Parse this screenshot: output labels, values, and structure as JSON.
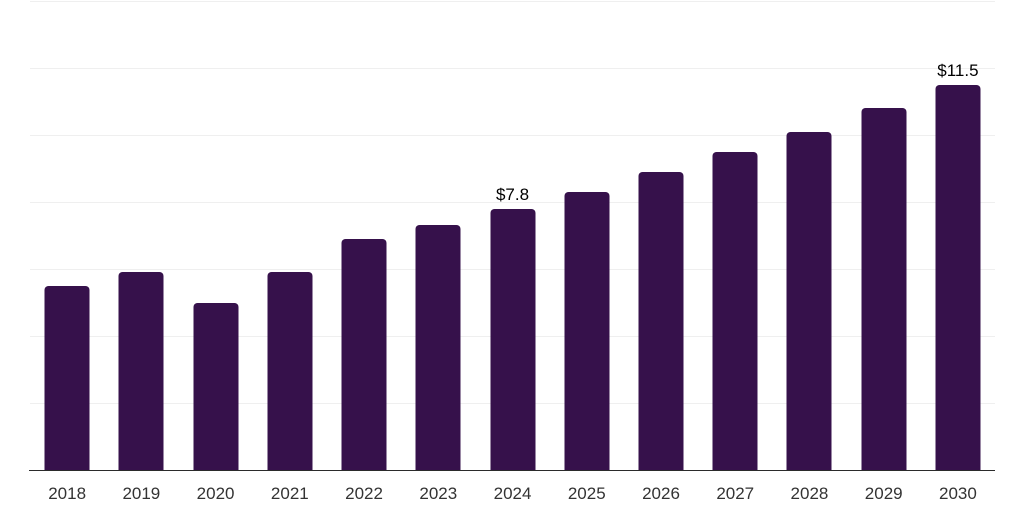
{
  "chart_data": {
    "type": "bar",
    "title": "",
    "xlabel": "",
    "ylabel": "",
    "categories": [
      "2018",
      "2019",
      "2020",
      "2021",
      "2022",
      "2023",
      "2024",
      "2025",
      "2026",
      "2027",
      "2028",
      "2029",
      "2030"
    ],
    "values": [
      5.5,
      5.9,
      5.0,
      5.9,
      6.9,
      7.3,
      7.8,
      8.3,
      8.9,
      9.5,
      10.1,
      10.8,
      11.5
    ],
    "annotations": [
      {
        "category": "2024",
        "label": "$7.8"
      },
      {
        "category": "2030",
        "label": "$11.5"
      }
    ],
    "ylim": [
      0,
      14
    ],
    "gridline_step": 2,
    "grid": true,
    "legend": false,
    "y_tick_labels_visible": false,
    "colors": {
      "bar_fill": "#36114B",
      "gridline": "#efefef",
      "axis_line": "#2b2b2b",
      "x_tick_label": "#333333",
      "data_label": "#000000",
      "background": "#ffffff"
    }
  }
}
